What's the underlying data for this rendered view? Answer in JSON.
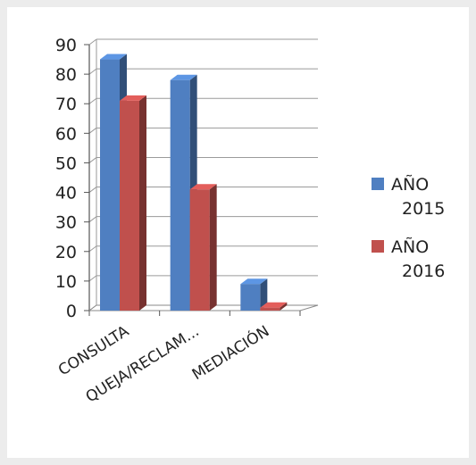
{
  "chart_data": {
    "type": "bar",
    "style": "3d-clustered-column",
    "categories": [
      "CONSULTA",
      "QUEJA/RECLAM...",
      "MEDIACIÓN"
    ],
    "series": [
      {
        "name": "AÑO 2015",
        "legend_lines": [
          "AÑO",
          "2015"
        ],
        "values": [
          85,
          78,
          9
        ],
        "color": "#4f7fc1"
      },
      {
        "name": "AÑO 2016",
        "legend_lines": [
          "AÑO",
          "2016"
        ],
        "values": [
          71,
          41,
          1
        ],
        "color": "#c0504d"
      }
    ],
    "y_ticks": [
      "0",
      "10",
      "20",
      "30",
      "40",
      "50",
      "60",
      "70",
      "80",
      "90"
    ],
    "ylim": [
      0,
      90
    ],
    "grid": true,
    "legend_position": "right",
    "title": "",
    "xlabel": "",
    "ylabel": ""
  }
}
